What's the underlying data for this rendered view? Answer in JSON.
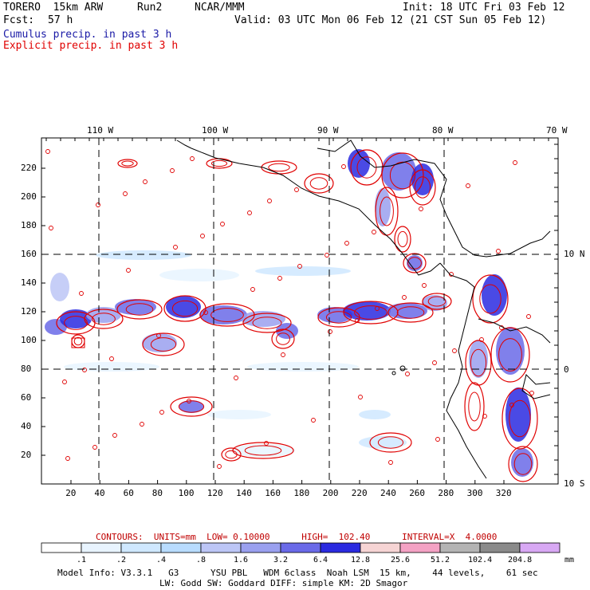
{
  "header": {
    "model": "TORERO  15km ARW",
    "run": "Run2",
    "center": "NCAR/MMM",
    "init": "Init: 18 UTC Fri 03 Feb 12",
    "fcst_label": "Fcst:",
    "fcst_value": "57 h",
    "valid": "Valid: 03 UTC Mon 06 Feb 12 (21 CST Sun 05 Feb 12)",
    "field1": "Cumulus precip. in past 3 h",
    "field2": "Explicit precip. in past 3 h"
  },
  "colors": {
    "field1": "#1a1aa6",
    "field2": "#e00000",
    "coast": "#000000"
  },
  "map": {
    "lon_labels": [
      "110 W",
      "100 W",
      "90 W",
      "80 W",
      "70 W"
    ],
    "lat_labels_right": [
      "10 N",
      "0",
      "10 S"
    ],
    "y_ticks": [
      "20",
      "40",
      "60",
      "80",
      "100",
      "120",
      "140",
      "160",
      "180",
      "200",
      "220"
    ],
    "x_ticks": [
      "20",
      "40",
      "60",
      "80",
      "100",
      "120",
      "140",
      "160",
      "180",
      "200",
      "220",
      "240",
      "260",
      "280",
      "300",
      "320"
    ]
  },
  "contours": {
    "text": "CONTOURS:  UNITS=mm  LOW= 0.10000      HIGH=  102.40      INTERVAL=X  4.0000"
  },
  "legend": {
    "labels": [
      ".1",
      ".2",
      ".4",
      ".8",
      "1.6",
      "3.2",
      "6.4",
      "12.8",
      "25.6",
      "51.2",
      "102.4",
      "204.8"
    ],
    "unit": "mm",
    "colors": [
      "#ffffff",
      "#e8f4ff",
      "#cfe8ff",
      "#b8dcff",
      "#bcc6f6",
      "#9aa0ef",
      "#6a6ae8",
      "#2a2ae0",
      "#f6d4d4",
      "#f4a2c4",
      "#b4b4b4",
      "#8a8a8a",
      "#d8a8f4"
    ]
  },
  "footer": {
    "line1": "Model Info: V3.3.1   G3      YSU PBL   WDM 6class  Noah LSM  15 km,    44 levels,    61 sec",
    "line2": "LW: Godd SW: Goddard DIFF: simple KM: 2D Smagor"
  }
}
